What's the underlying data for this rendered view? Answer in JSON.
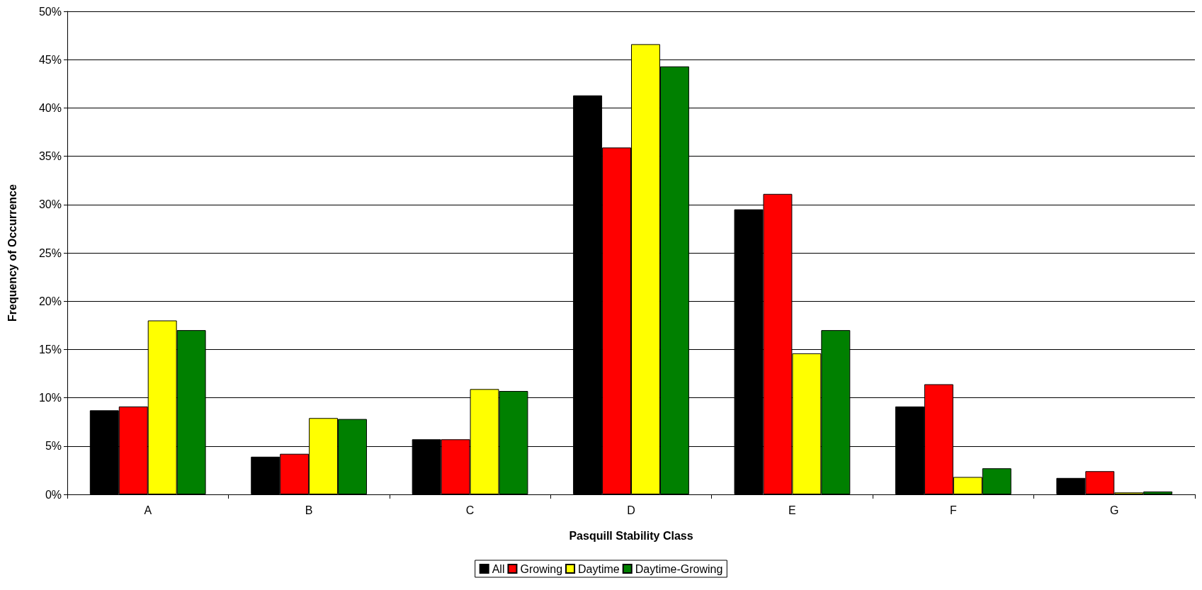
{
  "chart_data": {
    "type": "bar",
    "xlabel": "Pasquill Stability Class",
    "ylabel": "Frequency of Occurrence",
    "categories": [
      "A",
      "B",
      "C",
      "D",
      "E",
      "F",
      "G"
    ],
    "series": [
      {
        "name": "All",
        "color": "#000000",
        "values": [
          8.7,
          3.9,
          5.7,
          41.3,
          29.5,
          9.1,
          1.7
        ]
      },
      {
        "name": "Growing",
        "color": "#ff0000",
        "values": [
          9.1,
          4.2,
          5.7,
          35.9,
          31.1,
          11.4,
          2.4
        ]
      },
      {
        "name": "Daytime",
        "color": "#ffff00",
        "values": [
          18.0,
          7.9,
          10.9,
          46.6,
          14.6,
          1.8,
          0.2
        ]
      },
      {
        "name": "Daytime-Growing",
        "color": "#008000",
        "values": [
          17.0,
          7.8,
          10.7,
          44.3,
          17.0,
          2.7,
          0.3
        ]
      }
    ],
    "ylim": [
      0,
      50
    ],
    "yticks": [
      {
        "value": 0,
        "label": "0%"
      },
      {
        "value": 5,
        "label": "5%"
      },
      {
        "value": 10,
        "label": "10%"
      },
      {
        "value": 15,
        "label": "15%"
      },
      {
        "value": 20,
        "label": "20%"
      },
      {
        "value": 25,
        "label": "25%"
      },
      {
        "value": 30,
        "label": "30%"
      },
      {
        "value": 35,
        "label": "35%"
      },
      {
        "value": 40,
        "label": "40%"
      },
      {
        "value": 45,
        "label": "45%"
      },
      {
        "value": 50,
        "label": "50%"
      }
    ],
    "grid": "y",
    "legend": "bottom"
  }
}
